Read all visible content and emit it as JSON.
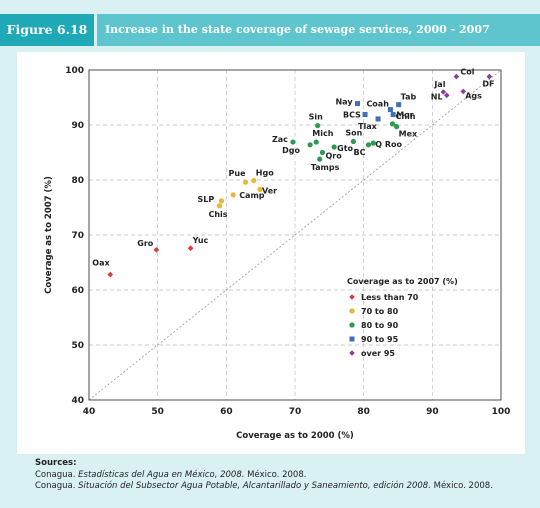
{
  "figure": {
    "label": "Figure 6.18",
    "title": "Increase in the state coverage of sewage services, 2000 - 2007"
  },
  "chart_data": {
    "type": "scatter",
    "title": "Increase in the state coverage of sewage services, 2000 - 2007",
    "xlabel": "Coverage as to 2000 (%)",
    "ylabel": "Coverage as to 2007 (%)",
    "xlim": [
      40,
      100
    ],
    "ylim": [
      40,
      100
    ],
    "xticks": [
      40,
      50,
      60,
      70,
      80,
      90,
      100
    ],
    "yticks": [
      40,
      50,
      60,
      70,
      80,
      90,
      100
    ],
    "grid": true,
    "reference_line": "y = x",
    "legend": {
      "title": "Coverage as to 2007 (%)",
      "position": "bottom-right"
    },
    "series": [
      {
        "name": "Less than 70",
        "color": "#e8343b",
        "marker": "diamond",
        "points": [
          {
            "label": "Oax",
            "x": 43.1,
            "y": 62.8
          },
          {
            "label": "Gro",
            "x": 49.8,
            "y": 67.3
          },
          {
            "label": "Yuc",
            "x": 54.8,
            "y": 67.6
          }
        ]
      },
      {
        "name": "70 to 80",
        "color": "#e8b734",
        "marker": "circle",
        "points": [
          {
            "label": "Chis",
            "x": 59.0,
            "y": 75.3
          },
          {
            "label": "SLP",
            "x": 59.3,
            "y": 76.2
          },
          {
            "label": "Camp",
            "x": 61.0,
            "y": 77.3
          },
          {
            "label": "Pue",
            "x": 62.8,
            "y": 79.6
          },
          {
            "label": "Hgo",
            "x": 64.0,
            "y": 79.9
          },
          {
            "label": "Ver",
            "x": 64.9,
            "y": 78.3
          }
        ]
      },
      {
        "name": "80 to 90",
        "color": "#2d9a4f",
        "marker": "circle",
        "points": [
          {
            "label": "Zac",
            "x": 69.7,
            "y": 86.9
          },
          {
            "label": "Dgo",
            "x": 72.2,
            "y": 86.4
          },
          {
            "label": "Mich",
            "x": 73.1,
            "y": 86.9
          },
          {
            "label": "Sin",
            "x": 73.3,
            "y": 89.9
          },
          {
            "label": "Tamps",
            "x": 73.6,
            "y": 83.8
          },
          {
            "label": "Qro",
            "x": 74.0,
            "y": 85.0
          },
          {
            "label": "Gto",
            "x": 75.7,
            "y": 86.0
          },
          {
            "label": "Son",
            "x": 78.5,
            "y": 87.0
          },
          {
            "label": "BC",
            "x": 80.7,
            "y": 86.4
          },
          {
            "label": "Q Roo",
            "x": 81.4,
            "y": 86.7
          },
          {
            "label": "Chih",
            "x": 84.2,
            "y": 90.2
          },
          {
            "label": "Mex",
            "x": 84.8,
            "y": 89.7
          }
        ]
      },
      {
        "name": "90 to 95",
        "color": "#3f6fb5",
        "marker": "square",
        "points": [
          {
            "label": "Nay",
            "x": 79.1,
            "y": 93.9
          },
          {
            "label": "BCS",
            "x": 80.2,
            "y": 91.9
          },
          {
            "label": "Tlax",
            "x": 82.1,
            "y": 91.1
          },
          {
            "label": "Coah",
            "x": 83.9,
            "y": 92.8
          },
          {
            "label": "Mor",
            "x": 84.3,
            "y": 91.9
          },
          {
            "label": "Tab",
            "x": 85.1,
            "y": 93.7
          }
        ]
      },
      {
        "name": "over 95",
        "color": "#8c3c9b",
        "marker": "diamond",
        "points": [
          {
            "label": "Jal",
            "x": 91.6,
            "y": 96.0
          },
          {
            "label": "NL",
            "x": 92.1,
            "y": 95.4
          },
          {
            "label": "Col",
            "x": 93.5,
            "y": 98.8
          },
          {
            "label": "Ags",
            "x": 94.5,
            "y": 96.1
          },
          {
            "label": "DF",
            "x": 98.3,
            "y": 98.8
          }
        ]
      }
    ]
  },
  "sources": {
    "heading": "Sources:",
    "line1_org": "Conagua.",
    "line1_title": "Estadísticas del Agua en México, 2008.",
    "line1_rest": "México. 2008.",
    "line2_org": "Conagua.",
    "line2_title": "Situación del Subsector Agua Potable, Alcantarillado y Saneamiento, edición 2008.",
    "line2_rest": "México. 2008."
  }
}
